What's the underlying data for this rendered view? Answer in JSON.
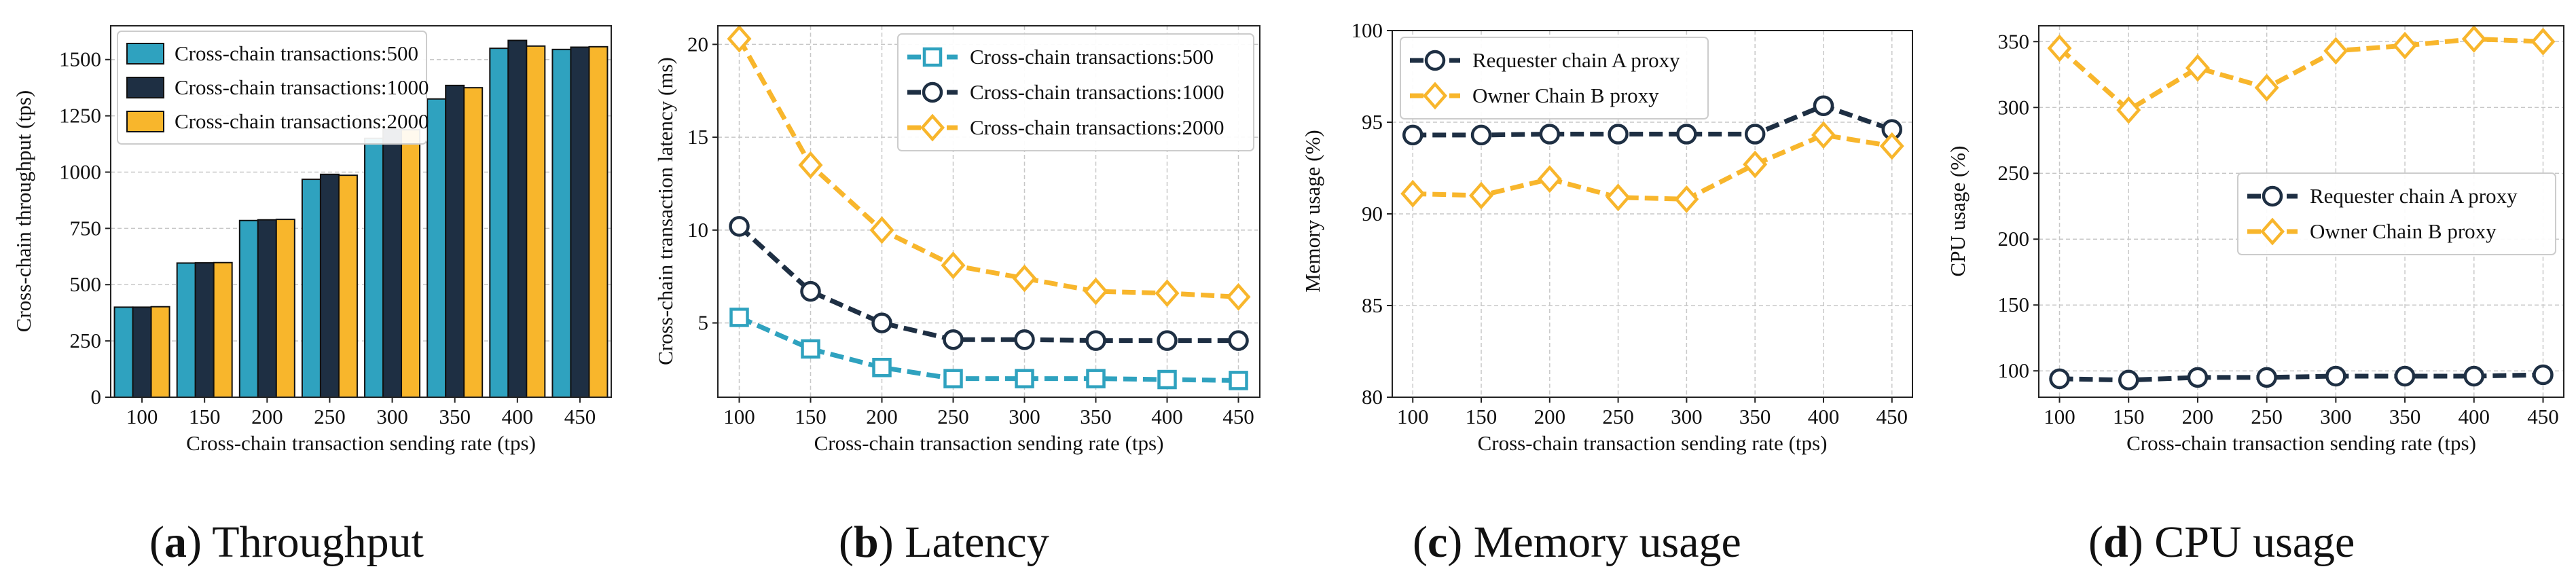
{
  "colors": {
    "blue": "#2fa2bf",
    "navy": "#1e2f43",
    "yellow": "#f8b62c",
    "grid": "#c8c8c8"
  },
  "captions": [
    {
      "letter": "a",
      "text": "Throughput"
    },
    {
      "letter": "b",
      "text": "Latency"
    },
    {
      "letter": "c",
      "text": "Memory usage"
    },
    {
      "letter": "d",
      "text": "CPU usage"
    }
  ],
  "chart_data": [
    {
      "type": "bar",
      "title": "",
      "xlabel": "Cross-chain transaction sending rate (tps)",
      "ylabel": "Cross-chain throughput (tps)",
      "categories": [
        "100",
        "150",
        "200",
        "250",
        "300",
        "350",
        "400",
        "450"
      ],
      "ylim": [
        0,
        1650
      ],
      "yticks": [
        0,
        250,
        500,
        750,
        1000,
        1250,
        1500
      ],
      "legend_position": "top-left",
      "series": [
        {
          "name": "Cross-chain transactions:500",
          "color": "blue",
          "values": [
            400,
            596,
            785,
            968,
            1150,
            1325,
            1550,
            1545
          ]
        },
        {
          "name": "Cross-chain transactions:1000",
          "color": "navy",
          "values": [
            400,
            597,
            788,
            990,
            1190,
            1385,
            1585,
            1555
          ]
        },
        {
          "name": "Cross-chain transactions:2000",
          "color": "yellow",
          "values": [
            402,
            598,
            790,
            986,
            1188,
            1375,
            1560,
            1557
          ]
        }
      ]
    },
    {
      "type": "line",
      "title": "",
      "xlabel": "Cross-chain transaction sending rate (tps)",
      "ylabel": "Cross-chain transaction latency (ms)",
      "x": [
        100,
        150,
        200,
        250,
        300,
        350,
        400,
        450
      ],
      "xlim": [
        85,
        465
      ],
      "ylim": [
        1,
        21
      ],
      "yticks": [
        5,
        10,
        15,
        20
      ],
      "legend_position": "top-right",
      "series": [
        {
          "name": "Cross-chain transactions:500",
          "color": "blue",
          "marker": "square",
          "values": [
            5.3,
            3.6,
            2.6,
            2.0,
            2.0,
            2.0,
            1.95,
            1.9
          ]
        },
        {
          "name": "Cross-chain transactions:1000",
          "color": "navy",
          "marker": "circle",
          "values": [
            10.2,
            6.7,
            5.0,
            4.1,
            4.1,
            4.05,
            4.05,
            4.05
          ]
        },
        {
          "name": "Cross-chain transactions:2000",
          "color": "yellow",
          "marker": "diamond",
          "values": [
            20.3,
            13.5,
            10.0,
            8.1,
            7.4,
            6.7,
            6.6,
            6.4
          ]
        }
      ]
    },
    {
      "type": "line",
      "title": "",
      "xlabel": "Cross-chain transaction sending rate (tps)",
      "ylabel": "Memory usage (%)",
      "x": [
        100,
        150,
        200,
        250,
        300,
        350,
        400,
        450
      ],
      "xlim": [
        85,
        465
      ],
      "ylim": [
        80,
        100
      ],
      "yticks": [
        80,
        85,
        90,
        95,
        100
      ],
      "legend_position": "top-left",
      "series": [
        {
          "name": "Requester chain A proxy",
          "color": "navy",
          "marker": "circle",
          "values": [
            94.3,
            94.3,
            94.35,
            94.35,
            94.35,
            94.35,
            95.9,
            94.6
          ]
        },
        {
          "name": "Owner Chain B proxy",
          "color": "yellow",
          "marker": "diamond",
          "values": [
            91.1,
            91.0,
            91.9,
            90.9,
            90.8,
            92.7,
            94.3,
            93.7
          ]
        }
      ]
    },
    {
      "type": "line",
      "title": "",
      "xlabel": "Cross-chain transaction sending rate (tps)",
      "ylabel": "CPU usage (%)",
      "x": [
        100,
        150,
        200,
        250,
        300,
        350,
        400,
        450
      ],
      "xlim": [
        85,
        465
      ],
      "ylim": [
        80,
        362
      ],
      "yticks": [
        100,
        150,
        200,
        250,
        300,
        350
      ],
      "legend_position": "center-right",
      "series": [
        {
          "name": "Requester chain A proxy",
          "color": "navy",
          "marker": "circle",
          "values": [
            94,
            93,
            95,
            95,
            96,
            96,
            96,
            97
          ]
        },
        {
          "name": "Owner Chain B proxy",
          "color": "yellow",
          "marker": "diamond",
          "values": [
            345,
            298,
            330,
            315,
            343,
            347,
            352,
            350
          ]
        }
      ]
    }
  ]
}
